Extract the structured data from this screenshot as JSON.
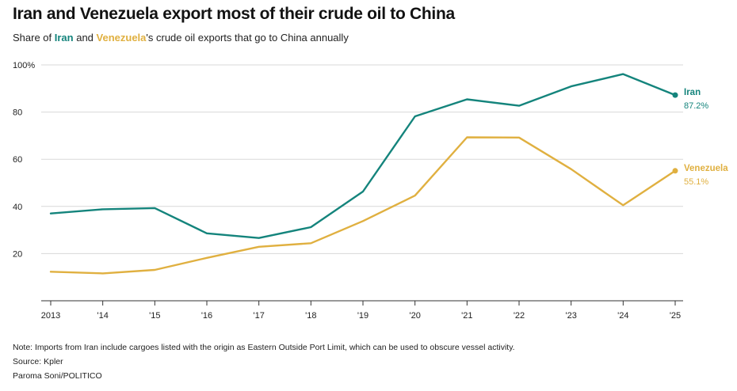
{
  "title": "Iran and Venezuela export most of their crude oil to China",
  "subtitle": {
    "prefix": "Share of ",
    "iran": "Iran",
    "and": " and ",
    "venezuela": "Venezuela",
    "suffix": "'s crude oil exports that go to China annually"
  },
  "colors": {
    "iran": "#14847c",
    "venezuela": "#e0b040",
    "grid": "#d8d8d8",
    "axis": "#333333"
  },
  "chart_data": {
    "type": "line",
    "title": "Iran and Venezuela export most of their crude oil to China",
    "subtitle": "Share of Iran and Venezuela's crude oil exports that go to China annually",
    "xlabel": "",
    "ylabel": "",
    "ylim": [
      0,
      100
    ],
    "yticks": [
      20,
      40,
      60,
      80
    ],
    "ytick_labels": [
      "20",
      "40",
      "60",
      "80"
    ],
    "ytop_label": "100%",
    "grid": true,
    "x": [
      2013,
      2014,
      2015,
      2016,
      2017,
      2018,
      2019,
      2020,
      2021,
      2022,
      2023,
      2024,
      2025
    ],
    "xtick_labels": [
      "2013",
      "'14",
      "'15",
      "'16",
      "'17",
      "'18",
      "'19",
      "'20",
      "'21",
      "'22",
      "'23",
      "'24",
      "'25"
    ],
    "series": [
      {
        "name": "Iran",
        "color": "#14847c",
        "end_label": "87.2%",
        "values": [
          37,
          38.8,
          39.3,
          28.6,
          26.6,
          31.2,
          46.3,
          78.2,
          85.4,
          82.7,
          90.9,
          96.1,
          87.2
        ]
      },
      {
        "name": "Venezuela",
        "color": "#e0b040",
        "end_label": "55.1%",
        "values": [
          12.3,
          11.6,
          13.1,
          18.2,
          22.9,
          24.4,
          33.8,
          44.6,
          69.3,
          69.2,
          55.8,
          40.5,
          55.1
        ]
      }
    ]
  },
  "footer": {
    "note": "Note: Imports from Iran include cargoes listed with the origin as Eastern Outside Port Limit, which can be used to obscure vessel activity.",
    "source": "Source: Kpler",
    "credit": "Paroma Soni/POLITICO"
  }
}
